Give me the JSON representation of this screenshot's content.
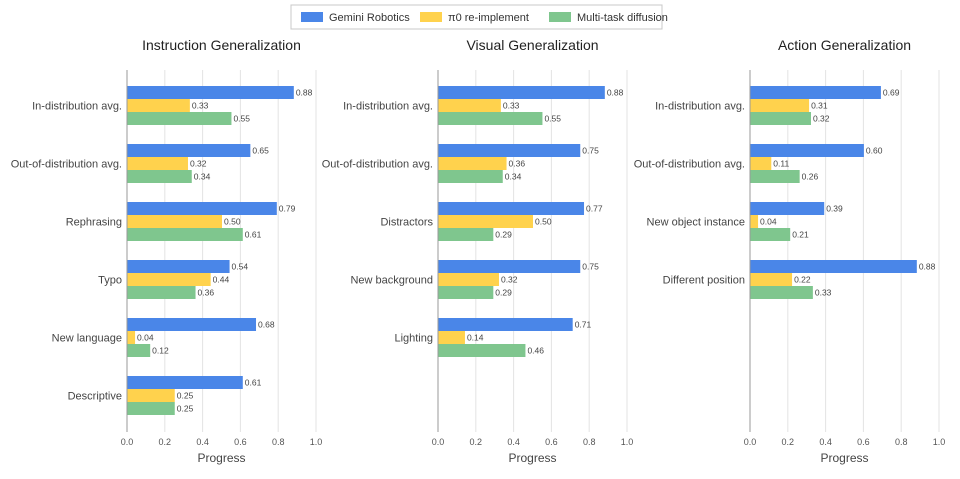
{
  "legend": [
    {
      "name": "Gemini Robotics",
      "color": "#4a86e8"
    },
    {
      "name": "π0 re-implement",
      "color": "#ffd24d"
    },
    {
      "name": "Multi-task diffusion",
      "color": "#7fc68e"
    }
  ],
  "chart_data": [
    {
      "type": "bar",
      "orientation": "horizontal",
      "title": "Instruction Generalization",
      "xlabel": "Progress",
      "xlim": [
        0,
        1.0
      ],
      "xticks": [
        "0.0",
        "0.2",
        "0.4",
        "0.6",
        "0.8",
        "1.0"
      ],
      "grid": true,
      "categories": [
        "In-distribution avg.",
        "Out-of-distribution avg.",
        "Rephrasing",
        "Typo",
        "New language",
        "Descriptive"
      ],
      "series": [
        {
          "name": "Gemini Robotics",
          "values": [
            0.88,
            0.65,
            0.79,
            0.54,
            0.68,
            0.61
          ],
          "labels": [
            "0.88",
            "0.65",
            "0.79",
            "0.54",
            "0.68",
            "0.61"
          ]
        },
        {
          "name": "π0 re-implement",
          "values": [
            0.33,
            0.32,
            0.5,
            0.44,
            0.04,
            0.25
          ],
          "labels": [
            "0.33",
            "0.32",
            "0.50",
            "0.44",
            "0.04",
            "0.25"
          ]
        },
        {
          "name": "Multi-task diffusion",
          "values": [
            0.55,
            0.34,
            0.61,
            0.36,
            0.12,
            0.25
          ],
          "labels": [
            "0.55",
            "0.34",
            "0.61",
            "0.36",
            "0.12",
            "0.25"
          ]
        }
      ]
    },
    {
      "type": "bar",
      "orientation": "horizontal",
      "title": "Visual Generalization",
      "xlabel": "Progress",
      "xlim": [
        0,
        1.0
      ],
      "xticks": [
        "0.0",
        "0.2",
        "0.4",
        "0.6",
        "0.8",
        "1.0"
      ],
      "grid": true,
      "categories": [
        "In-distribution avg.",
        "Out-of-distribution avg.",
        "Distractors",
        "New background",
        "Lighting"
      ],
      "series": [
        {
          "name": "Gemini Robotics",
          "values": [
            0.88,
            0.75,
            0.77,
            0.75,
            0.71
          ],
          "labels": [
            "0.88",
            "0.75",
            "0.77",
            "0.75",
            "0.71"
          ]
        },
        {
          "name": "π0 re-implement",
          "values": [
            0.33,
            0.36,
            0.5,
            0.32,
            0.14
          ],
          "labels": [
            "0.33",
            "0.36",
            "0.50",
            "0.32",
            "0.14"
          ]
        },
        {
          "name": "Multi-task diffusion",
          "values": [
            0.55,
            0.34,
            0.29,
            0.29,
            0.46
          ],
          "labels": [
            "0.55",
            "0.34",
            "0.29",
            "0.29",
            "0.46"
          ]
        }
      ]
    },
    {
      "type": "bar",
      "orientation": "horizontal",
      "title": "Action Generalization",
      "xlabel": "Progress",
      "xlim": [
        0,
        1.0
      ],
      "xticks": [
        "0.0",
        "0.2",
        "0.4",
        "0.6",
        "0.8",
        "1.0"
      ],
      "grid": true,
      "categories": [
        "In-distribution avg.",
        "Out-of-distribution avg.",
        "New object instance",
        "Different position"
      ],
      "series": [
        {
          "name": "Gemini Robotics",
          "values": [
            0.69,
            0.6,
            0.39,
            0.88
          ],
          "labels": [
            "0.69",
            "0.60",
            "0.39",
            "0.88"
          ]
        },
        {
          "name": "π0 re-implement",
          "values": [
            0.31,
            0.11,
            0.04,
            0.22
          ],
          "labels": [
            "0.31",
            "0.11",
            "0.04",
            "0.22"
          ]
        },
        {
          "name": "Multi-task diffusion",
          "values": [
            0.32,
            0.26,
            0.21,
            0.33
          ],
          "labels": [
            "0.32",
            "0.26",
            "0.21",
            "0.33"
          ]
        }
      ]
    }
  ]
}
